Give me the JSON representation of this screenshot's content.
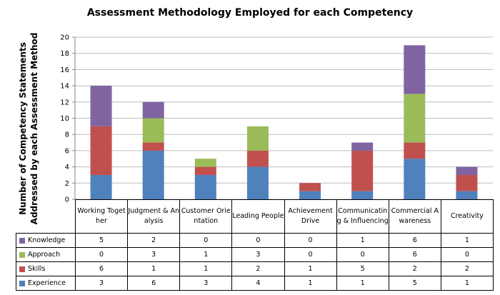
{
  "chart_data": {
    "type": "stacked_bar",
    "title": "Assessment Methodology Employed for each Competency",
    "ylabel": [
      "Number of Competency Statements",
      "Addressed by each Assessment Method"
    ],
    "categories": [
      "Working Together",
      "Judgment & Analysis",
      "Customer Orientation",
      "Leading People",
      "Achievement Drive",
      "Communicating & Influencing",
      "Commercial Awareness",
      "Creativity"
    ],
    "series": [
      {
        "name": "Experience",
        "color": "#4f81bd",
        "values": [
          3,
          6,
          3,
          4,
          1,
          1,
          5,
          1
        ]
      },
      {
        "name": "Skills",
        "color": "#c0504d",
        "values": [
          6,
          1,
          1,
          2,
          1,
          5,
          2,
          2
        ]
      },
      {
        "name": "Approach",
        "color": "#9bbb59",
        "values": [
          0,
          3,
          1,
          3,
          0,
          0,
          6,
          0
        ]
      },
      {
        "name": "Knowledge",
        "color": "#8064a2",
        "values": [
          5,
          2,
          0,
          0,
          0,
          1,
          6,
          1
        ]
      }
    ],
    "ylim": [
      0,
      20
    ],
    "yticks": [
      0,
      2,
      4,
      6,
      8,
      10,
      12,
      14,
      16,
      18,
      20
    ],
    "grid": true,
    "data_table": true
  }
}
